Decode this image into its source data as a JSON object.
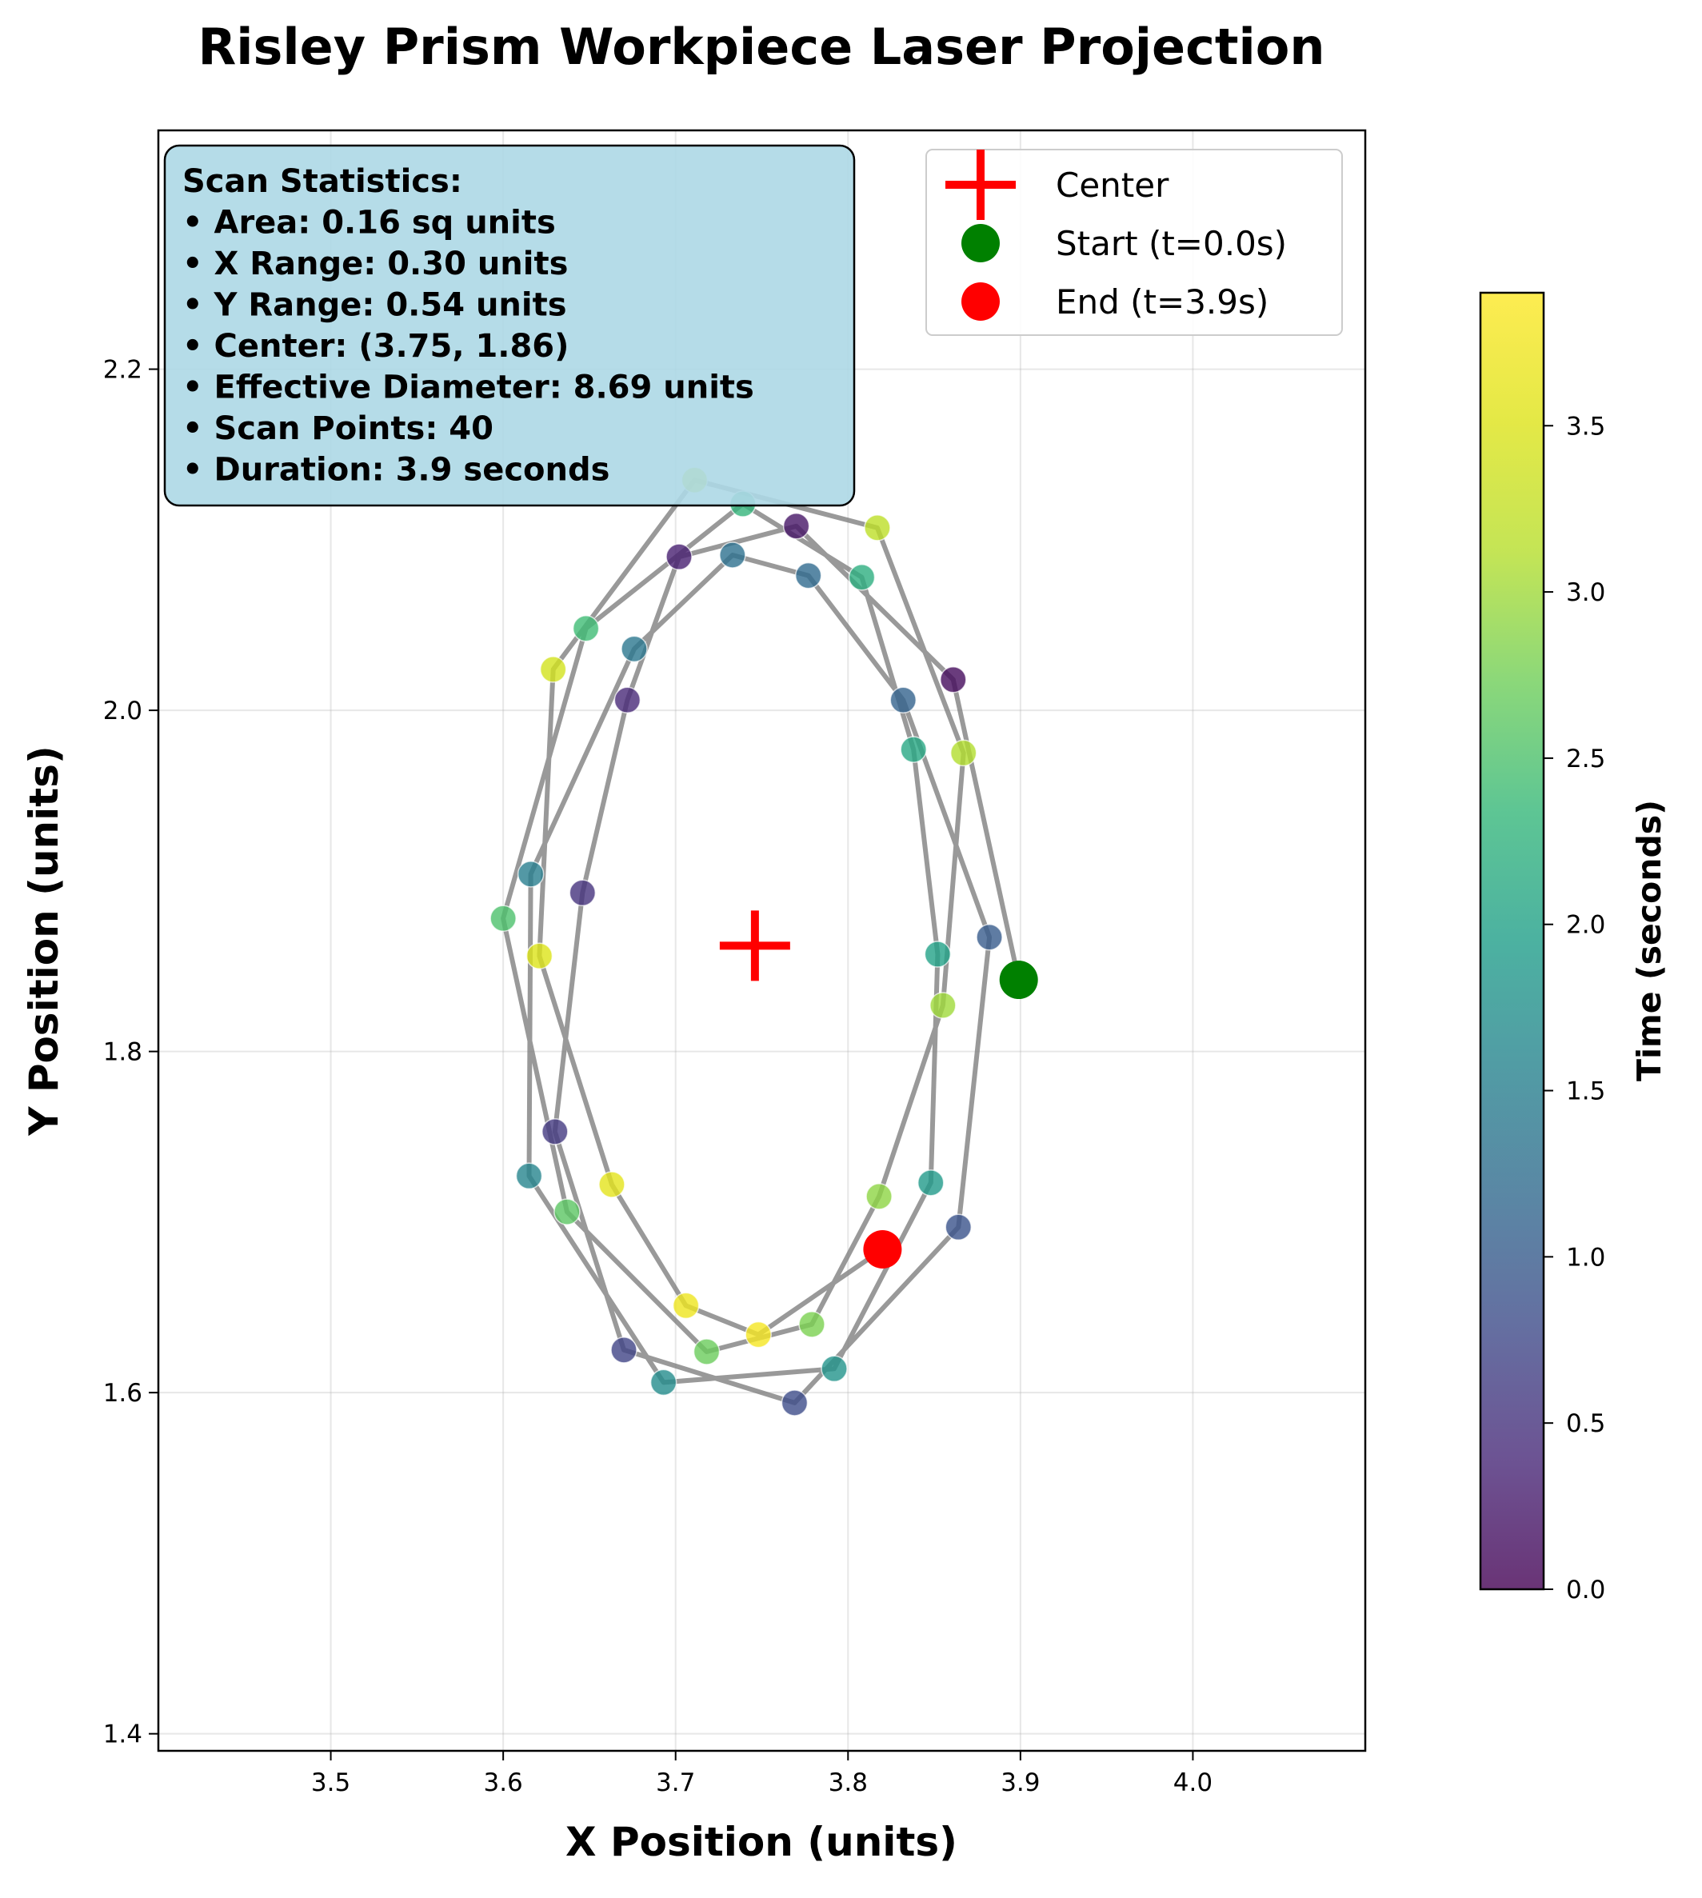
{
  "chart_data": {
    "type": "scatter",
    "title": "Risley Prism Workpiece Laser Projection",
    "xlabel": "X Position (units)",
    "ylabel": "Y Position (units)",
    "xlim": [
      3.4,
      4.1
    ],
    "ylim": [
      1.39,
      2.34
    ],
    "x_ticks": [
      "3.5",
      "3.6",
      "3.7",
      "3.8",
      "3.9",
      "4.0"
    ],
    "y_ticks": [
      "1.4",
      "1.6",
      "1.8",
      "2.0",
      "2.2"
    ],
    "grid": true,
    "path_color": "#808080",
    "colormap": "viridis",
    "points": [
      {
        "t": 0.0,
        "x": 3.899,
        "y": 1.842
      },
      {
        "t": 0.1,
        "x": 3.861,
        "y": 2.018
      },
      {
        "t": 0.2,
        "x": 3.77,
        "y": 2.108
      },
      {
        "t": 0.3,
        "x": 3.702,
        "y": 2.09
      },
      {
        "t": 0.4,
        "x": 3.672,
        "y": 2.006
      },
      {
        "t": 0.5,
        "x": 3.646,
        "y": 1.893
      },
      {
        "t": 0.6,
        "x": 3.63,
        "y": 1.753
      },
      {
        "t": 0.7,
        "x": 3.67,
        "y": 1.625
      },
      {
        "t": 0.8,
        "x": 3.769,
        "y": 1.594
      },
      {
        "t": 0.9,
        "x": 3.864,
        "y": 1.697
      },
      {
        "t": 1.0,
        "x": 3.882,
        "y": 1.867
      },
      {
        "t": 1.1,
        "x": 3.832,
        "y": 2.006
      },
      {
        "t": 1.2,
        "x": 3.777,
        "y": 2.079
      },
      {
        "t": 1.3,
        "x": 3.733,
        "y": 2.091
      },
      {
        "t": 1.4,
        "x": 3.676,
        "y": 2.036
      },
      {
        "t": 1.5,
        "x": 3.616,
        "y": 1.904
      },
      {
        "t": 1.6,
        "x": 3.615,
        "y": 1.727
      },
      {
        "t": 1.7,
        "x": 3.693,
        "y": 1.606
      },
      {
        "t": 1.8,
        "x": 3.792,
        "y": 1.614
      },
      {
        "t": 1.9,
        "x": 3.848,
        "y": 1.723
      },
      {
        "t": 2.0,
        "x": 3.852,
        "y": 1.857
      },
      {
        "t": 2.1,
        "x": 3.838,
        "y": 1.977
      },
      {
        "t": 2.2,
        "x": 3.808,
        "y": 2.078
      },
      {
        "t": 2.3,
        "x": 3.739,
        "y": 2.121
      },
      {
        "t": 2.4,
        "x": 3.648,
        "y": 2.048
      },
      {
        "t": 2.5,
        "x": 3.6,
        "y": 1.878
      },
      {
        "t": 2.6,
        "x": 3.637,
        "y": 1.706
      },
      {
        "t": 2.7,
        "x": 3.718,
        "y": 1.624
      },
      {
        "t": 2.8,
        "x": 3.779,
        "y": 1.64
      },
      {
        "t": 2.9,
        "x": 3.818,
        "y": 1.715
      },
      {
        "t": 3.0,
        "x": 3.855,
        "y": 1.827
      },
      {
        "t": 3.1,
        "x": 3.867,
        "y": 1.975
      },
      {
        "t": 3.2,
        "x": 3.817,
        "y": 2.107
      },
      {
        "t": 3.3,
        "x": 3.711,
        "y": 2.135
      },
      {
        "t": 3.4,
        "x": 3.629,
        "y": 2.024
      },
      {
        "t": 3.5,
        "x": 3.621,
        "y": 1.856
      },
      {
        "t": 3.6,
        "x": 3.663,
        "y": 1.722
      },
      {
        "t": 3.7,
        "x": 3.706,
        "y": 1.651
      },
      {
        "t": 3.8,
        "x": 3.748,
        "y": 1.634
      },
      {
        "t": 3.9,
        "x": 3.82,
        "y": 1.684
      }
    ],
    "center": {
      "x": 3.746,
      "y": 1.862
    },
    "stats_lines": [
      "Scan Statistics:",
      "• Area: 0.16 sq units",
      "• X Range: 0.30 units",
      "• Y Range: 0.54 units",
      "• Center: (3.75, 1.86)",
      "• Effective Diameter: 8.69 units",
      "• Scan Points: 40",
      "• Duration: 3.9 seconds"
    ],
    "stats_box_color": "#add8e6",
    "legend": {
      "position": "upper right",
      "entries": [
        {
          "label": "Center",
          "marker": "plus",
          "color": "#ff0000"
        },
        {
          "label": "Start (t=0.0s)",
          "marker": "circle",
          "color": "#008000"
        },
        {
          "label": "End (t=3.9s)",
          "marker": "circle",
          "color": "#ff0000"
        }
      ]
    },
    "colorbar": {
      "label": "Time (seconds)",
      "range": [
        0.0,
        3.9
      ],
      "ticks": [
        "0.0",
        "0.5",
        "1.0",
        "1.5",
        "2.0",
        "2.5",
        "3.0",
        "3.5"
      ]
    }
  }
}
